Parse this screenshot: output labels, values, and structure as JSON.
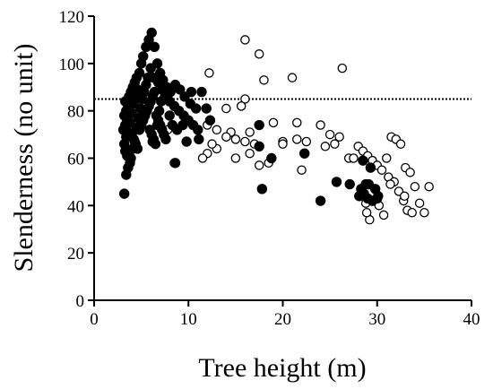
{
  "chart_data": {
    "type": "scatter",
    "title": "",
    "xlabel": "Tree height (m)",
    "ylabel": "Slenderness (no unit)",
    "xlim": [
      0,
      40
    ],
    "ylim": [
      0,
      120
    ],
    "xticks": [
      0,
      10,
      20,
      30,
      40
    ],
    "yticks": [
      0,
      20,
      40,
      60,
      80,
      100,
      120
    ],
    "grid": false,
    "legend": "none",
    "reference_line": {
      "y": 85,
      "style": "dotted",
      "color": "#000000"
    },
    "series": [
      {
        "marker": "filled-circle",
        "color": "#000000",
        "points": [
          [
            3.2,
            45
          ],
          [
            3.4,
            53
          ],
          [
            3.6,
            56
          ],
          [
            3.8,
            58
          ],
          [
            3.5,
            61
          ],
          [
            3.3,
            63
          ],
          [
            3.2,
            66
          ],
          [
            3.4,
            69
          ],
          [
            3.1,
            72
          ],
          [
            3.3,
            74
          ],
          [
            3.5,
            76
          ],
          [
            3.2,
            78
          ],
          [
            3.4,
            80
          ],
          [
            3.6,
            82
          ],
          [
            3.3,
            84
          ],
          [
            3.7,
            86
          ],
          [
            3.9,
            88
          ],
          [
            4.1,
            90
          ],
          [
            4.3,
            92
          ],
          [
            4.5,
            94
          ],
          [
            4.8,
            96
          ],
          [
            5.0,
            100
          ],
          [
            5.2,
            103
          ],
          [
            5.5,
            107
          ],
          [
            5.8,
            110
          ],
          [
            6.1,
            113
          ],
          [
            6.4,
            107
          ],
          [
            6.7,
            100
          ],
          [
            7.0,
            96
          ],
          [
            7.3,
            93
          ],
          [
            7.7,
            90
          ],
          [
            8.1,
            88
          ],
          [
            8.6,
            91
          ],
          [
            9.1,
            89
          ],
          [
            9.6,
            86
          ],
          [
            10.2,
            83
          ],
          [
            10.8,
            81
          ],
          [
            11.4,
            88
          ],
          [
            11.9,
            81
          ],
          [
            12.3,
            76
          ],
          [
            6.0,
            98
          ],
          [
            6.3,
            94
          ],
          [
            6.8,
            92
          ],
          [
            7.2,
            89
          ],
          [
            7.6,
            87
          ],
          [
            8.0,
            84
          ],
          [
            8.5,
            82
          ],
          [
            9.0,
            80
          ],
          [
            9.5,
            78
          ],
          [
            10.0,
            76
          ],
          [
            10.5,
            74
          ],
          [
            11.0,
            72
          ],
          [
            4.0,
            70
          ],
          [
            4.2,
            68
          ],
          [
            4.4,
            66
          ],
          [
            4.6,
            64
          ],
          [
            4.8,
            72
          ],
          [
            5.0,
            74
          ],
          [
            5.2,
            76
          ],
          [
            5.4,
            78
          ],
          [
            5.6,
            80
          ],
          [
            5.8,
            82
          ],
          [
            6.0,
            84
          ],
          [
            6.2,
            86
          ],
          [
            6.4,
            88
          ],
          [
            6.6,
            78
          ],
          [
            6.8,
            76
          ],
          [
            7.0,
            74
          ],
          [
            7.2,
            72
          ],
          [
            7.4,
            70
          ],
          [
            7.6,
            68
          ],
          [
            3.9,
            60
          ],
          [
            4.1,
            64
          ],
          [
            4.3,
            67
          ],
          [
            4.5,
            73
          ],
          [
            4.7,
            77
          ],
          [
            4.9,
            81
          ],
          [
            5.1,
            85
          ],
          [
            5.3,
            88
          ],
          [
            5.5,
            91
          ],
          [
            5.7,
            94
          ],
          [
            3.6,
            71
          ],
          [
            3.8,
            75
          ],
          [
            4.0,
            79
          ],
          [
            4.2,
            83
          ],
          [
            4.4,
            86
          ],
          [
            4.6,
            89
          ],
          [
            5.9,
            72
          ],
          [
            6.1,
            70
          ],
          [
            6.3,
            68
          ],
          [
            6.5,
            66
          ],
          [
            6.7,
            74
          ],
          [
            6.9,
            80
          ],
          [
            7.1,
            84
          ],
          [
            7.5,
            86
          ],
          [
            8.0,
            78
          ],
          [
            8.3,
            74
          ],
          [
            8.8,
            72
          ],
          [
            9.4,
            74
          ],
          [
            10.3,
            88
          ],
          [
            11.1,
            68
          ],
          [
            8.6,
            58
          ],
          [
            9.8,
            67
          ],
          [
            6.2,
            67
          ],
          [
            17.5,
            74
          ],
          [
            17.8,
            47
          ],
          [
            18.8,
            60
          ],
          [
            22.3,
            62
          ],
          [
            24.0,
            42
          ],
          [
            17.5,
            65
          ],
          [
            25.7,
            50
          ],
          [
            27.1,
            49
          ],
          [
            28.3,
            47
          ],
          [
            28.6,
            45
          ],
          [
            29.0,
            43
          ],
          [
            29.5,
            42
          ],
          [
            30.0,
            43
          ],
          [
            28.8,
            49
          ],
          [
            29.8,
            47
          ],
          [
            28.5,
            59
          ],
          [
            29.3,
            56
          ],
          [
            30.1,
            44
          ],
          [
            28.1,
            44
          ],
          [
            29.1,
            49
          ]
        ]
      },
      {
        "marker": "open-circle",
        "color": "#000000",
        "points": [
          [
            16.0,
            110
          ],
          [
            17.5,
            104
          ],
          [
            26.3,
            98
          ],
          [
            12.2,
            96
          ],
          [
            18.0,
            93
          ],
          [
            21.0,
            94
          ],
          [
            16.0,
            85
          ],
          [
            15.6,
            82
          ],
          [
            14.0,
            81
          ],
          [
            19.0,
            75
          ],
          [
            21.5,
            75
          ],
          [
            24.0,
            74
          ],
          [
            12.0,
            74
          ],
          [
            13.0,
            72
          ],
          [
            14.5,
            71
          ],
          [
            16.5,
            71
          ],
          [
            14.0,
            69
          ],
          [
            15.0,
            68
          ],
          [
            16.0,
            67
          ],
          [
            17.0,
            66
          ],
          [
            20.0,
            67
          ],
          [
            21.5,
            68
          ],
          [
            22.5,
            67
          ],
          [
            25.0,
            70
          ],
          [
            26.0,
            69
          ],
          [
            25.5,
            66
          ],
          [
            24.5,
            65
          ],
          [
            13.0,
            64
          ],
          [
            12.0,
            62
          ],
          [
            15.0,
            60
          ],
          [
            16.5,
            62
          ],
          [
            17.5,
            57
          ],
          [
            18.5,
            58
          ],
          [
            20.0,
            66
          ],
          [
            22.0,
            55
          ],
          [
            27.0,
            60
          ],
          [
            27.5,
            60
          ],
          [
            28.0,
            65
          ],
          [
            28.5,
            63
          ],
          [
            29.0,
            61
          ],
          [
            29.5,
            59
          ],
          [
            30.0,
            57
          ],
          [
            30.5,
            55
          ],
          [
            31.0,
            60
          ],
          [
            31.5,
            69
          ],
          [
            32.0,
            68
          ],
          [
            32.5,
            66
          ],
          [
            33.0,
            56
          ],
          [
            33.5,
            54
          ],
          [
            34.0,
            48
          ],
          [
            34.5,
            41
          ],
          [
            35.0,
            37
          ],
          [
            35.5,
            48
          ],
          [
            31.2,
            52
          ],
          [
            31.8,
            50
          ],
          [
            32.3,
            46
          ],
          [
            32.8,
            42
          ],
          [
            33.2,
            38
          ],
          [
            33.7,
            37
          ],
          [
            30.2,
            40
          ],
          [
            30.7,
            36
          ],
          [
            29.2,
            34
          ],
          [
            28.9,
            37
          ],
          [
            31.4,
            49
          ],
          [
            32.9,
            44
          ],
          [
            28.3,
            45
          ],
          [
            28.8,
            41
          ],
          [
            7.8,
            72
          ],
          [
            8.5,
            58
          ],
          [
            11.5,
            60
          ],
          [
            12.5,
            66
          ],
          [
            5.0,
            78
          ]
        ]
      }
    ]
  }
}
